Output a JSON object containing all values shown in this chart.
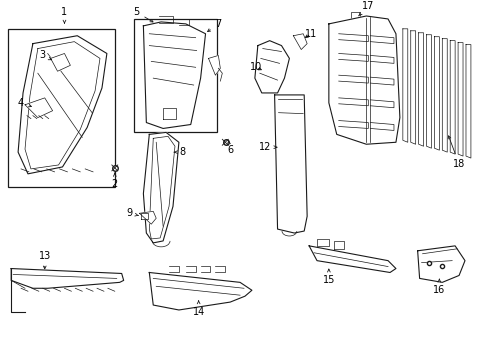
{
  "background_color": "#ffffff",
  "line_color": "#1a1a1a",
  "label_color": "#000000",
  "label_fontsize": 7,
  "fig_width": 4.9,
  "fig_height": 3.6,
  "dpi": 100
}
